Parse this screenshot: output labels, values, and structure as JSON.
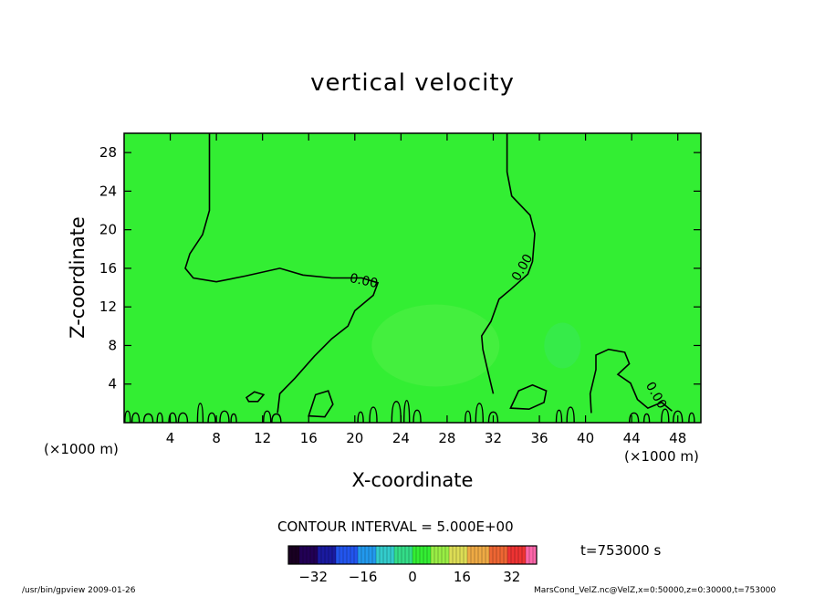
{
  "chart_data": {
    "type": "heatmap",
    "title": "vertical velocity",
    "xlabel": "X-coordinate",
    "ylabel": "Z-coordinate",
    "x_unit": "(×1000 m)",
    "y_unit": "(×1000 m)",
    "xlim": [
      0,
      50
    ],
    "ylim": [
      0,
      30
    ],
    "x_ticks": [
      4,
      8,
      12,
      16,
      20,
      24,
      28,
      32,
      36,
      40,
      44,
      48
    ],
    "y_ticks": [
      4,
      8,
      12,
      16,
      20,
      24,
      28
    ],
    "background_color": "#33ee33",
    "contour_label": "0.00",
    "contour_interval_text": "CONTOUR INTERVAL = 5.000E+00",
    "time_text": "t=753000 s",
    "colorbar": {
      "min": -40,
      "max": 40,
      "ticks": [
        -32,
        -16,
        0,
        16,
        32
      ]
    },
    "contours": [
      {
        "name": "left",
        "points": [
          [
            7.4,
            30
          ],
          [
            7.4,
            22
          ],
          [
            6.8,
            19.5
          ],
          [
            5.7,
            17.5
          ],
          [
            5.3,
            16
          ],
          [
            6.0,
            15
          ],
          [
            8.0,
            14.6
          ],
          [
            10.5,
            15.2
          ],
          [
            13.5,
            16
          ],
          [
            15.5,
            15.3
          ],
          [
            18,
            15
          ],
          [
            20.6,
            15
          ],
          [
            22,
            14.5
          ],
          [
            21.6,
            13.2
          ],
          [
            20,
            11.6
          ],
          [
            19.4,
            10
          ],
          [
            18,
            8.7
          ],
          [
            16.5,
            6.9
          ],
          [
            14.8,
            4.6
          ],
          [
            13.5,
            3
          ],
          [
            13.3,
            1
          ]
        ]
      },
      {
        "name": "right",
        "points": [
          [
            33.2,
            30
          ],
          [
            33.2,
            26
          ],
          [
            33.6,
            23.5
          ],
          [
            35.2,
            21.5
          ],
          [
            35.6,
            19.6
          ],
          [
            35.4,
            16.7
          ],
          [
            35,
            15.4
          ],
          [
            33.5,
            13.8
          ],
          [
            32.5,
            12.8
          ],
          [
            31.8,
            10.5
          ],
          [
            31,
            9
          ],
          [
            31.1,
            7.6
          ],
          [
            31.5,
            5.5
          ],
          [
            32,
            3
          ]
        ]
      },
      {
        "name": "right-blob",
        "points": [
          [
            40.5,
            1
          ],
          [
            40.4,
            3
          ],
          [
            40.9,
            5.5
          ],
          [
            40.9,
            7
          ],
          [
            42,
            7.6
          ],
          [
            43.4,
            7.3
          ],
          [
            43.8,
            6.1
          ],
          [
            42.8,
            5
          ],
          [
            43.9,
            4.1
          ],
          [
            44.5,
            2.4
          ],
          [
            45.4,
            1.5
          ],
          [
            46.6,
            2.1
          ],
          [
            47.5,
            1.2
          ]
        ]
      },
      {
        "name": "blob-34",
        "points": [
          [
            33.5,
            1.5
          ],
          [
            34.2,
            3.3
          ],
          [
            35.4,
            3.9
          ],
          [
            36.6,
            3.3
          ],
          [
            36.4,
            2.1
          ],
          [
            35.1,
            1.4
          ]
        ]
      },
      {
        "name": "blob-17",
        "points": [
          [
            16,
            0.7
          ],
          [
            16.6,
            2.9
          ],
          [
            17.7,
            3.3
          ],
          [
            18.1,
            1.9
          ],
          [
            17.4,
            0.6
          ]
        ]
      },
      {
        "name": "blob-11",
        "points": [
          [
            10.6,
            2.6
          ],
          [
            11.3,
            3.2
          ],
          [
            12.1,
            2.9
          ],
          [
            11.6,
            2.2
          ],
          [
            10.8,
            2.2
          ]
        ]
      }
    ],
    "ripples_left": [
      [
        0.3,
        1.2
      ],
      [
        1.0,
        1.0
      ],
      [
        2.1,
        0.9
      ],
      [
        3.1,
        1.0
      ],
      [
        4.2,
        1.0
      ],
      [
        5.1,
        1.0
      ],
      [
        6.6,
        2.0
      ],
      [
        7.6,
        1.0
      ],
      [
        8.7,
        1.2
      ],
      [
        9.5,
        0.9
      ],
      [
        12.4,
        1.2
      ],
      [
        13.2,
        0.9
      ]
    ],
    "ripples_mid": [
      [
        20.5,
        1.1
      ],
      [
        21.6,
        1.6
      ],
      [
        23.6,
        2.2
      ],
      [
        24.5,
        2.3
      ],
      [
        25.4,
        1.3
      ]
    ],
    "ripples_right": [
      [
        29.8,
        1.2
      ],
      [
        30.8,
        2.0
      ],
      [
        32.0,
        1.1
      ],
      [
        37.7,
        1.3
      ],
      [
        38.7,
        1.6
      ],
      [
        44.2,
        1.0
      ],
      [
        45.3,
        0.9
      ],
      [
        46.9,
        1.4
      ],
      [
        48.0,
        1.2
      ],
      [
        49.2,
        1.0
      ]
    ],
    "labels_positions": [
      [
        19.5,
        14.6
      ],
      [
        34.2,
        14.6
      ],
      [
        45.2,
        3.9
      ]
    ]
  },
  "footer": {
    "left": "/usr/bin/gpview  2009-01-26",
    "right": "MarsCond_VelZ.nc@VelZ,x=0:50000,z=0:30000,t=753000"
  }
}
